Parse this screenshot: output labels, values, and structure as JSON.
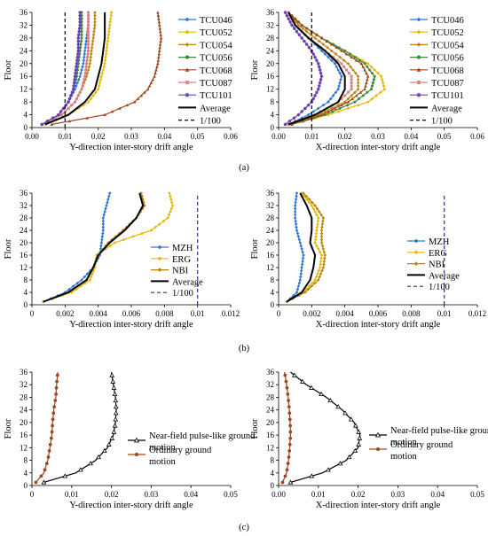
{
  "panel_labels": [
    "(a)",
    "(b)",
    "(c)"
  ],
  "chart_data": [
    {
      "type": "line",
      "panel": "a",
      "xlabel": "Y-direction inter-story drift angle",
      "ylabel": "Floor",
      "xlim": [
        0,
        0.06
      ],
      "ylim": [
        0,
        36
      ],
      "xticks": [
        "0.00",
        "0.01",
        "0.02",
        "0.03",
        "0.04",
        "0.05",
        "0.06"
      ],
      "yticks": [
        "0",
        "4",
        "8",
        "12",
        "16",
        "20",
        "24",
        "28",
        "32",
        "36"
      ],
      "legend_position": "top-right",
      "series": [
        {
          "name": "TCU046",
          "color": "#2e75d6",
          "marker": "diamond",
          "y": [
            1,
            4,
            8,
            12,
            16,
            20,
            24,
            28,
            32,
            36
          ],
          "x": [
            0.003,
            0.008,
            0.011,
            0.013,
            0.0145,
            0.0155,
            0.016,
            0.0165,
            0.017,
            0.017
          ]
        },
        {
          "name": "TCU052",
          "color": "#e6b800",
          "marker": "diamond",
          "y": [
            1,
            4,
            8,
            12,
            16,
            20,
            24,
            28,
            32,
            36
          ],
          "x": [
            0.004,
            0.011,
            0.017,
            0.02,
            0.021,
            0.022,
            0.0225,
            0.023,
            0.0235,
            0.024
          ]
        },
        {
          "name": "TCU054",
          "color": "#b8860b",
          "marker": "diamond",
          "y": [
            1,
            4,
            8,
            12,
            16,
            20,
            24,
            28,
            32,
            36
          ],
          "x": [
            0.003,
            0.009,
            0.013,
            0.015,
            0.0165,
            0.0175,
            0.018,
            0.0185,
            0.019,
            0.019
          ]
        },
        {
          "name": "TCU056",
          "color": "#3a8a3a",
          "marker": "circle",
          "y": [
            1,
            4,
            8,
            12,
            16,
            20,
            24,
            28,
            32,
            36
          ],
          "x": [
            0.003,
            0.008,
            0.011,
            0.0125,
            0.0135,
            0.014,
            0.0145,
            0.015,
            0.015,
            0.015
          ]
        },
        {
          "name": "TCU068",
          "color": "#a0461e",
          "marker": "triangle",
          "y": [
            1,
            4,
            8,
            12,
            16,
            20,
            24,
            28,
            32,
            36
          ],
          "x": [
            0.006,
            0.022,
            0.031,
            0.035,
            0.037,
            0.038,
            0.0385,
            0.039,
            0.0385,
            0.038
          ]
        },
        {
          "name": "TCU087",
          "color": "#d98080",
          "marker": "square",
          "y": [
            1,
            4,
            8,
            12,
            16,
            20,
            24,
            28,
            32,
            36
          ],
          "x": [
            0.003,
            0.009,
            0.013,
            0.015,
            0.016,
            0.0165,
            0.017,
            0.017,
            0.017,
            0.017
          ]
        },
        {
          "name": "TCU101",
          "color": "#6a3fb5",
          "marker": "star",
          "y": [
            1,
            4,
            8,
            12,
            16,
            20,
            24,
            28,
            32,
            36
          ],
          "x": [
            0.003,
            0.008,
            0.011,
            0.0125,
            0.013,
            0.0135,
            0.014,
            0.014,
            0.0145,
            0.0145
          ]
        },
        {
          "name": "Average",
          "color": "#000000",
          "marker": "none",
          "width": 2,
          "y": [
            1,
            4,
            8,
            12,
            16,
            20,
            24,
            28,
            32,
            36
          ],
          "x": [
            0.004,
            0.011,
            0.016,
            0.019,
            0.02,
            0.021,
            0.0215,
            0.022,
            0.022,
            0.022
          ]
        },
        {
          "name": "1/100",
          "color": "#000000",
          "marker": "none",
          "dash": true,
          "y": [
            0,
            36
          ],
          "x": [
            0.01,
            0.01
          ]
        }
      ]
    },
    {
      "type": "line",
      "panel": "a",
      "xlabel": "X-direction inter-story drift angle",
      "ylabel": "Floor",
      "xlim": [
        0,
        0.06
      ],
      "ylim": [
        0,
        36
      ],
      "xticks": [
        "0.00",
        "0.01",
        "0.02",
        "0.03",
        "0.04",
        "0.05",
        "0.06"
      ],
      "yticks": [
        "0",
        "4",
        "8",
        "12",
        "16",
        "20",
        "24",
        "28",
        "32",
        "36"
      ],
      "legend_position": "top-right",
      "series": [
        {
          "name": "TCU046",
          "color": "#2e75d6",
          "marker": "diamond",
          "y": [
            1,
            4,
            8,
            12,
            16,
            20,
            24,
            28,
            32,
            36
          ],
          "x": [
            0.003,
            0.009,
            0.015,
            0.018,
            0.019,
            0.017,
            0.013,
            0.009,
            0.005,
            0.003
          ]
        },
        {
          "name": "TCU052",
          "color": "#e6b800",
          "marker": "diamond",
          "y": [
            1,
            4,
            8,
            12,
            16,
            20,
            24,
            28,
            32,
            36
          ],
          "x": [
            0.004,
            0.015,
            0.027,
            0.032,
            0.031,
            0.027,
            0.02,
            0.013,
            0.007,
            0.003
          ]
        },
        {
          "name": "TCU054",
          "color": "#b8860b",
          "marker": "diamond",
          "y": [
            1,
            4,
            8,
            12,
            16,
            20,
            24,
            28,
            32,
            36
          ],
          "x": [
            0.003,
            0.012,
            0.02,
            0.024,
            0.024,
            0.021,
            0.016,
            0.011,
            0.006,
            0.003
          ]
        },
        {
          "name": "TCU056",
          "color": "#3a8a3a",
          "marker": "circle",
          "y": [
            1,
            4,
            8,
            12,
            16,
            20,
            24,
            28,
            32,
            36
          ],
          "x": [
            0.004,
            0.014,
            0.023,
            0.028,
            0.029,
            0.026,
            0.02,
            0.013,
            0.007,
            0.003
          ]
        },
        {
          "name": "TCU068",
          "color": "#a0461e",
          "marker": "triangle",
          "y": [
            1,
            4,
            8,
            12,
            16,
            20,
            24,
            28,
            32,
            36
          ],
          "x": [
            0.004,
            0.013,
            0.021,
            0.026,
            0.027,
            0.025,
            0.019,
            0.013,
            0.007,
            0.003
          ]
        },
        {
          "name": "TCU087",
          "color": "#d98080",
          "marker": "square",
          "y": [
            1,
            4,
            8,
            12,
            16,
            20,
            24,
            28,
            32,
            36
          ],
          "x": [
            0.003,
            0.011,
            0.018,
            0.022,
            0.022,
            0.019,
            0.014,
            0.009,
            0.005,
            0.003
          ]
        },
        {
          "name": "TCU101",
          "color": "#6a3fb5",
          "marker": "star",
          "y": [
            1,
            4,
            8,
            12,
            16,
            20,
            24,
            28,
            32,
            36
          ],
          "x": [
            0.002,
            0.006,
            0.01,
            0.012,
            0.013,
            0.012,
            0.01,
            0.007,
            0.004,
            0.002
          ]
        },
        {
          "name": "Average",
          "color": "#000000",
          "marker": "none",
          "width": 2,
          "y": [
            1,
            4,
            8,
            12,
            16,
            20,
            24,
            28,
            32,
            36
          ],
          "x": [
            0.003,
            0.011,
            0.018,
            0.02,
            0.02,
            0.018,
            0.014,
            0.009,
            0.005,
            0.003
          ]
        },
        {
          "name": "1/100",
          "color": "#000000",
          "marker": "none",
          "dash": true,
          "y": [
            0,
            36
          ],
          "x": [
            0.01,
            0.01
          ]
        }
      ]
    },
    {
      "type": "line",
      "panel": "b",
      "xlabel": "Y-direction inter-story drift angle",
      "ylabel": "Floor",
      "xlim": [
        0,
        0.012
      ],
      "ylim": [
        0,
        36
      ],
      "xticks": [
        "0",
        "0.002",
        "0.004",
        "0.006",
        "0.008",
        "0.01",
        "0.012"
      ],
      "yticks": [
        "0",
        "4",
        "8",
        "12",
        "16",
        "20",
        "24",
        "28",
        "32",
        "36"
      ],
      "legend_position": "bottom-right",
      "series": [
        {
          "name": "MZH",
          "color": "#2e75d6",
          "marker": "diamond",
          "y": [
            1,
            4,
            8,
            12,
            16,
            20,
            24,
            28,
            32,
            36
          ],
          "x": [
            0.0007,
            0.002,
            0.003,
            0.0037,
            0.0041,
            0.0042,
            0.0043,
            0.0043,
            0.0045,
            0.0047
          ]
        },
        {
          "name": "ERG",
          "color": "#e6b800",
          "marker": "diamond",
          "y": [
            1,
            4,
            8,
            12,
            16,
            20,
            24,
            28,
            32,
            36
          ],
          "x": [
            0.0007,
            0.0024,
            0.0035,
            0.0038,
            0.0039,
            0.005,
            0.0072,
            0.0082,
            0.0085,
            0.0083
          ]
        },
        {
          "name": "NBI",
          "color": "#b8860b",
          "marker": "diamond",
          "y": [
            1,
            4,
            8,
            12,
            16,
            20,
            24,
            28,
            32,
            36
          ],
          "x": [
            0.0007,
            0.0022,
            0.0033,
            0.0037,
            0.004,
            0.0046,
            0.0055,
            0.0063,
            0.0068,
            0.0066
          ]
        },
        {
          "name": "Average",
          "color": "#000000",
          "marker": "none",
          "width": 2,
          "y": [
            1,
            4,
            8,
            12,
            16,
            20,
            24,
            28,
            32,
            36
          ],
          "x": [
            0.0007,
            0.0022,
            0.0033,
            0.0037,
            0.004,
            0.0047,
            0.0056,
            0.0063,
            0.0067,
            0.0065
          ]
        },
        {
          "name": "1/100",
          "color": "#1f3a80",
          "marker": "none",
          "dash": true,
          "y": [
            0,
            36
          ],
          "x": [
            0.01,
            0.01
          ]
        }
      ]
    },
    {
      "type": "line",
      "panel": "b",
      "xlabel": "X-direction inter-story drift angle",
      "ylabel": "Floor",
      "xlim": [
        0,
        0.012
      ],
      "ylim": [
        0,
        36
      ],
      "xticks": [
        "0",
        "0.002",
        "0.004",
        "0.006",
        "0.008",
        "0.01",
        "0.012"
      ],
      "yticks": [
        "0",
        "4",
        "8",
        "12",
        "16",
        "20",
        "24",
        "28",
        "32",
        "36"
      ],
      "legend_position": "center-right",
      "series": [
        {
          "name": "MZH",
          "color": "#2e75d6",
          "marker": "diamond",
          "y": [
            1,
            4,
            8,
            12,
            16,
            20,
            24,
            28,
            32,
            36
          ],
          "x": [
            0.0005,
            0.0011,
            0.0013,
            0.0014,
            0.0015,
            0.0013,
            0.0011,
            0.001,
            0.001,
            0.0011
          ]
        },
        {
          "name": "ERG",
          "color": "#e6b800",
          "marker": "diamond",
          "y": [
            1,
            4,
            8,
            12,
            16,
            20,
            24,
            28,
            32,
            36
          ],
          "x": [
            0.0005,
            0.0015,
            0.0022,
            0.0025,
            0.0026,
            0.0022,
            0.0023,
            0.0024,
            0.002,
            0.0014
          ]
        },
        {
          "name": "NBI",
          "color": "#b8860b",
          "marker": "diamond",
          "y": [
            1,
            4,
            8,
            12,
            16,
            20,
            24,
            28,
            32,
            36
          ],
          "x": [
            0.0005,
            0.0016,
            0.0024,
            0.0027,
            0.0028,
            0.0026,
            0.0026,
            0.0027,
            0.0022,
            0.0015
          ]
        },
        {
          "name": "Average",
          "color": "#000000",
          "marker": "none",
          "width": 2,
          "y": [
            1,
            4,
            8,
            12,
            16,
            20,
            24,
            28,
            32,
            36
          ],
          "x": [
            0.0005,
            0.0014,
            0.0019,
            0.0021,
            0.0022,
            0.0019,
            0.002,
            0.002,
            0.0017,
            0.0013
          ]
        },
        {
          "name": "1/100",
          "color": "#1f3a80",
          "marker": "none",
          "dash": true,
          "y": [
            0,
            36
          ],
          "x": [
            0.01,
            0.01
          ]
        }
      ]
    },
    {
      "type": "line",
      "panel": "c",
      "xlabel": "Y-direction inter-story drift angle",
      "ylabel": "Floor",
      "xlim": [
        0,
        0.05
      ],
      "ylim": [
        0,
        36
      ],
      "xticks": [
        "0",
        "0.01",
        "0.02",
        "0.03",
        "0.04",
        "0.05"
      ],
      "yticks": [
        "0",
        "4",
        "8",
        "12",
        "16",
        "20",
        "24",
        "28",
        "32",
        "36"
      ],
      "legend_position": "center-right",
      "series": [
        {
          "name": "Near-field pulse-like ground motion",
          "color": "#000000",
          "marker": "open-triangle",
          "y": [
            1,
            4,
            8,
            12,
            16,
            20,
            24,
            28,
            32,
            36
          ],
          "x": [
            0.003,
            0.011,
            0.016,
            0.019,
            0.0205,
            0.021,
            0.0212,
            0.021,
            0.0205,
            0.02
          ]
        },
        {
          "name": "Ordinary ground motion",
          "color": "#a0461e",
          "marker": "circle",
          "y": [
            1,
            4,
            8,
            12,
            16,
            20,
            24,
            28,
            32,
            36
          ],
          "x": [
            0.001,
            0.003,
            0.004,
            0.0045,
            0.005,
            0.0052,
            0.0055,
            0.006,
            0.0062,
            0.0065
          ]
        }
      ]
    },
    {
      "type": "line",
      "panel": "c",
      "xlabel": "X-direction inter-story drift angle",
      "ylabel": "Floor",
      "xlim": [
        0,
        0.05
      ],
      "ylim": [
        0,
        36
      ],
      "xticks": [
        "0.00",
        "0.01",
        "0.02",
        "0.03",
        "0.04",
        "0.05"
      ],
      "yticks": [
        "0",
        "4",
        "8",
        "12",
        "16",
        "20",
        "24",
        "28",
        "32",
        "36"
      ],
      "legend_position": "center-right",
      "series": [
        {
          "name": "Near-field pulse-like ground motion",
          "color": "#000000",
          "marker": "open-triangle",
          "y": [
            1,
            4,
            8,
            12,
            16,
            20,
            24,
            28,
            32,
            36
          ],
          "x": [
            0.003,
            0.011,
            0.017,
            0.02,
            0.0205,
            0.019,
            0.016,
            0.012,
            0.007,
            0.003
          ]
        },
        {
          "name": "Ordinary ground motion",
          "color": "#a0461e",
          "marker": "circle",
          "y": [
            1,
            4,
            8,
            12,
            16,
            20,
            24,
            28,
            32,
            36
          ],
          "x": [
            0.001,
            0.002,
            0.0025,
            0.0028,
            0.003,
            0.0029,
            0.0027,
            0.0024,
            0.002,
            0.0015
          ]
        }
      ]
    }
  ]
}
